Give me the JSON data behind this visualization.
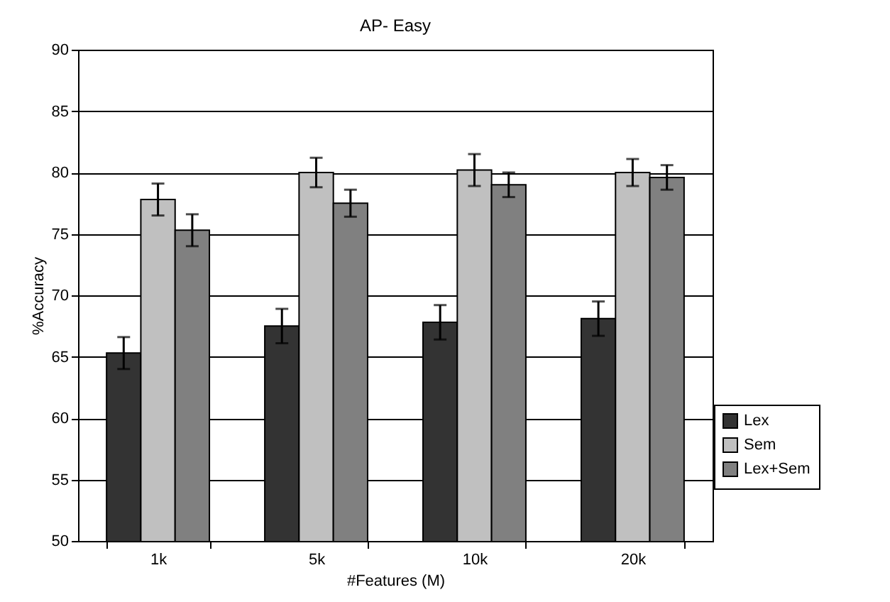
{
  "chart_data": {
    "type": "bar",
    "title": "AP- Easy",
    "xlabel": "#Features (M)",
    "ylabel": "%Accuracy",
    "categories": [
      "1k",
      "5k",
      "10k",
      "20k"
    ],
    "series": [
      {
        "name": "Lex",
        "color": "#333333",
        "values": [
          65.3,
          67.5,
          67.8,
          68.1
        ],
        "errors": [
          1.3,
          1.4,
          1.4,
          1.4
        ]
      },
      {
        "name": "Sem",
        "color": "#c0c0c0",
        "values": [
          77.8,
          80.0,
          80.2,
          80.0
        ],
        "errors": [
          1.3,
          1.2,
          1.3,
          1.1
        ]
      },
      {
        "name": "Lex+Sem",
        "color": "#808080",
        "values": [
          75.3,
          77.5,
          79.0,
          79.6
        ],
        "errors": [
          1.3,
          1.1,
          1.0,
          1.0
        ]
      }
    ],
    "ylim": [
      50,
      90
    ],
    "yticks": [
      50,
      55,
      60,
      65,
      70,
      75,
      80,
      85,
      90
    ],
    "grid": "y",
    "legend": "bottom right"
  }
}
